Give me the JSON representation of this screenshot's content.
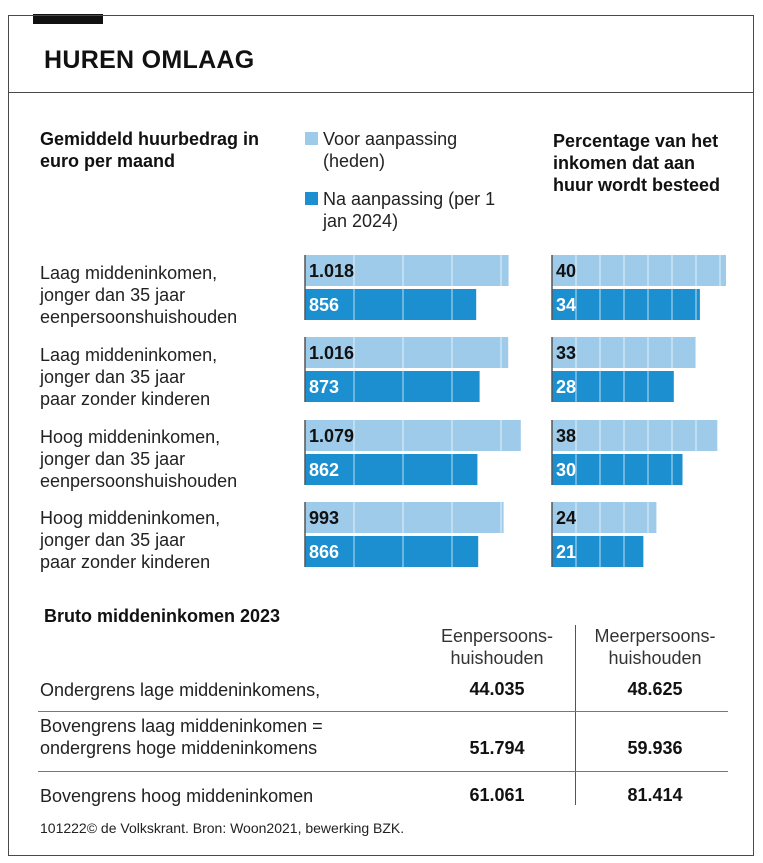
{
  "title": "HUREN OMLAAG",
  "left_header": "Gemiddeld huurbedrag in euro per maand",
  "right_header": "Percentage van het inkomen dat aan huur wordt besteed",
  "legend": [
    {
      "label": "Voor aanpassing (heden)",
      "color": "#9ecbea"
    },
    {
      "label": "Na aanpassing (per 1 jan 2024)",
      "color": "#1b8fd0"
    }
  ],
  "chart_data": [
    {
      "type": "bar",
      "orientation": "horizontal",
      "title": "Gemiddeld huurbedrag in euro per maand",
      "categories": [
        "Laag middeninkomen, jonger dan 35 jaar eenpersoonshuishouden",
        "Laag middeninkomen, jonger dan 35 jaar paar zonder kinderen",
        "Hoog middeninkomen, jonger dan 35 jaar eenpersoonshuishouden",
        "Hoog middeninkomen, jonger dan 35 jaar paar zonder kinderen"
      ],
      "series": [
        {
          "name": "Voor aanpassing (heden)",
          "values": [
            1018,
            1016,
            1079,
            993
          ],
          "labels": [
            "1.018",
            "1.016",
            "1.079",
            "993"
          ],
          "color": "#9ecbea"
        },
        {
          "name": "Na aanpassing (per 1 jan 2024)",
          "values": [
            856,
            873,
            862,
            866
          ],
          "labels": [
            "856",
            "873",
            "862",
            "866"
          ],
          "color": "#1b8fd0"
        }
      ],
      "xlim": [
        0,
        1100
      ],
      "grid": true
    },
    {
      "type": "bar",
      "orientation": "horizontal",
      "title": "Percentage van het inkomen dat aan huur wordt besteed",
      "categories": [
        "Laag middeninkomen, jonger dan 35 jaar eenpersoonshuishouden",
        "Laag middeninkomen, jonger dan 35 jaar paar zonder kinderen",
        "Hoog middeninkomen, jonger dan 35 jaar eenpersoonshuishouden",
        "Hoog middeninkomen, jonger dan 35 jaar paar zonder kinderen"
      ],
      "series": [
        {
          "name": "Voor aanpassing (heden)",
          "values": [
            40,
            33,
            38,
            24
          ],
          "labels": [
            "40",
            "33",
            "38",
            "24"
          ],
          "color": "#9ecbea"
        },
        {
          "name": "Na aanpassing (per 1 jan 2024)",
          "values": [
            34,
            28,
            30,
            21
          ],
          "labels": [
            "34",
            "28",
            "30",
            "21"
          ],
          "color": "#1b8fd0"
        }
      ],
      "xlim": [
        0,
        40
      ],
      "grid": true
    }
  ],
  "row_labels": [
    [
      "Laag middeninkomen,",
      "jonger dan 35 jaar",
      "eenpersoonshuishouden"
    ],
    [
      "Laag middeninkomen,",
      "jonger dan 35 jaar",
      "paar zonder kinderen"
    ],
    [
      "Hoog middeninkomen,",
      "jonger dan 35 jaar",
      "eenpersoonshuishouden"
    ],
    [
      "Hoog middeninkomen,",
      "jonger dan 35 jaar",
      "paar zonder kinderen"
    ]
  ],
  "table": {
    "title": "Bruto middeninkomen 2023",
    "columns": [
      "Eenpersoons-huishouden",
      "Meerpersoons-huishouden"
    ],
    "rows": [
      {
        "label": "Ondergrens lage middeninkomens,",
        "values": [
          "44.035",
          "48.625"
        ]
      },
      {
        "label": "Bovengrens laag middeninkomen = ondergrens hoge middeninkomens",
        "values": [
          "51.794",
          "59.936"
        ]
      },
      {
        "label": "Bovengrens hoog middeninkomen",
        "values": [
          "61.061",
          "81.414"
        ]
      }
    ]
  },
  "footer": "101222© de Volkskrant. Bron:  Woon2021, bewerking BZK."
}
